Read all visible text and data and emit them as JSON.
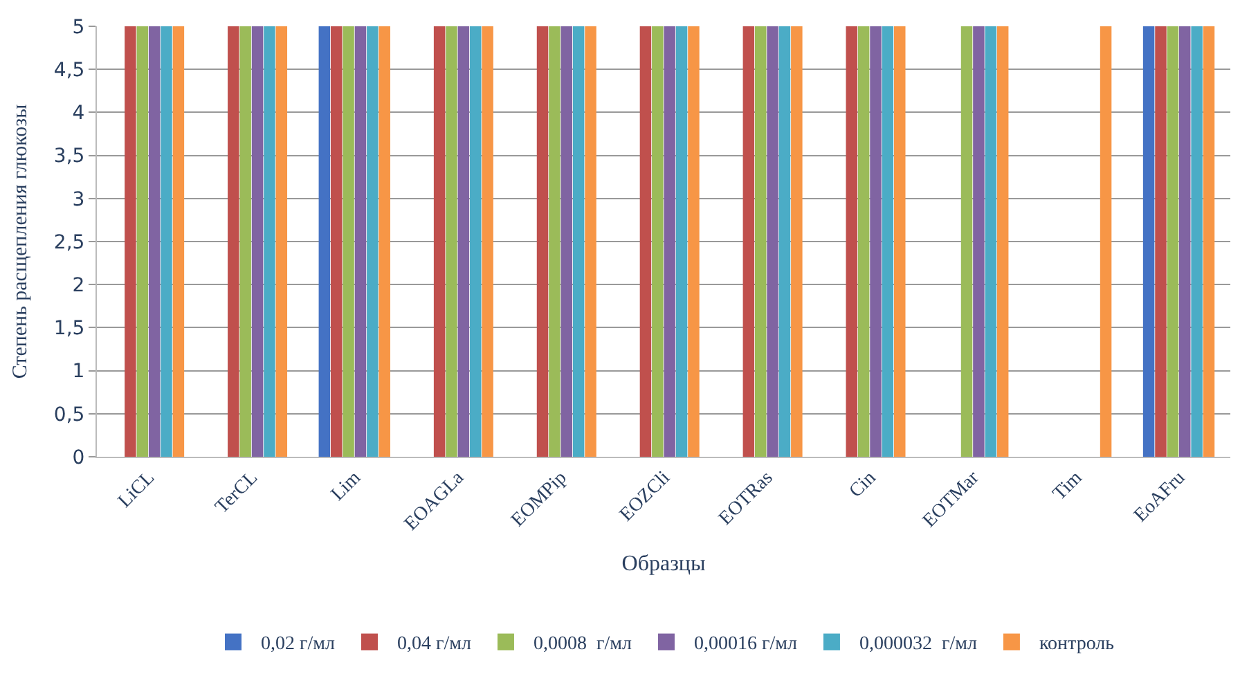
{
  "chart_data": {
    "type": "bar",
    "xlabel": "Образцы",
    "ylabel": "Степень расщепления глюкозы",
    "categories": [
      "LiCL",
      "TerCL",
      "Lim",
      "EOAGLa",
      "EOMPip",
      "EOZCli",
      "EOTRas",
      "Cin",
      "EOTMar",
      "Tim",
      "EoAFru"
    ],
    "series": [
      {
        "name": "0,02 г/мл",
        "color": "#4472c4",
        "values": [
          0,
          0,
          5,
          0,
          0,
          0,
          0,
          0,
          0,
          0,
          5
        ]
      },
      {
        "name": "0,04 г/мл",
        "color": "#c0504d",
        "values": [
          5,
          5,
          5,
          5,
          5,
          5,
          5,
          5,
          0,
          0,
          5
        ]
      },
      {
        "name": "0,0008  г/мл",
        "color": "#9bbb59",
        "values": [
          5,
          5,
          5,
          5,
          5,
          5,
          5,
          5,
          5,
          0,
          5
        ]
      },
      {
        "name": "0,00016 г/мл",
        "color": "#8064a2",
        "values": [
          5,
          5,
          5,
          5,
          5,
          5,
          5,
          5,
          5,
          0,
          5
        ]
      },
      {
        "name": "0,000032  г/мл",
        "color": "#4bacc6",
        "values": [
          5,
          5,
          5,
          5,
          5,
          5,
          5,
          5,
          5,
          0,
          5
        ]
      },
      {
        "name": "контроль",
        "color": "#f79646",
        "values": [
          5,
          5,
          5,
          5,
          5,
          5,
          5,
          5,
          5,
          5,
          5
        ]
      }
    ],
    "ylim": [
      0,
      5
    ],
    "yticks": [
      0,
      {
        "value": 0.5,
        "label": "0,5"
      },
      1,
      {
        "value": 1.5,
        "label": "1,5"
      },
      2,
      {
        "value": 2.5,
        "label": "2,5"
      },
      3,
      {
        "value": 3.5,
        "label": "3,5"
      },
      4,
      {
        "value": 4.5,
        "label": "4,5"
      },
      5
    ],
    "grid": "y",
    "legend": "bottom"
  }
}
